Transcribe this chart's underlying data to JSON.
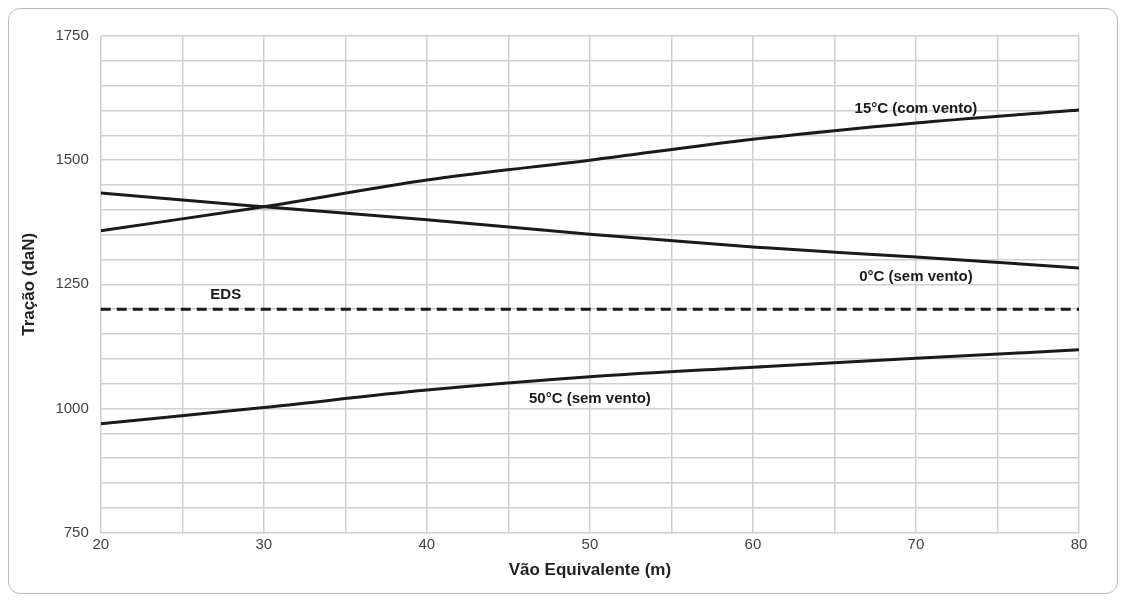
{
  "chart_data": {
    "type": "line",
    "xlabel": "Vão Equivalente (m)",
    "ylabel": "Tração (daN)",
    "x": [
      20,
      30,
      40,
      50,
      60,
      70,
      80
    ],
    "series": [
      {
        "name": "15°C (com vento)",
        "color": "#1a1a1a",
        "values": [
          1358,
          1406,
          1460,
          1500,
          1542,
          1575,
          1601
        ]
      },
      {
        "name": "0°C (sem vento)",
        "color": "#1a1a1a",
        "values": [
          1434,
          1406,
          1380,
          1351,
          1325,
          1305,
          1283
        ]
      },
      {
        "name": "50°C (sem vento)",
        "color": "#1a1a1a",
        "values": [
          969,
          1002,
          1037,
          1064,
          1083,
          1101,
          1118
        ]
      }
    ],
    "ref_lines": [
      {
        "axis": "y",
        "value": 1200,
        "label": "EDS",
        "color": "#1a1a1a",
        "line_style": "dashed"
      }
    ],
    "xlim": [
      20,
      80
    ],
    "ylim": [
      750,
      1750
    ],
    "xticks": [
      20,
      {
        "value": 25,
        "label": null
      },
      30,
      {
        "value": 35,
        "label": null
      },
      40,
      {
        "value": 45,
        "label": null
      },
      50,
      {
        "value": 55,
        "label": null
      },
      60,
      {
        "value": 65,
        "label": null
      },
      70,
      {
        "value": 75,
        "label": null
      },
      80
    ],
    "yticks": [
      750,
      {
        "value": 800,
        "label": null
      },
      {
        "value": 850,
        "label": null
      },
      {
        "value": 900,
        "label": null
      },
      {
        "value": 950,
        "label": null
      },
      1000,
      {
        "value": 1050,
        "label": null
      },
      {
        "value": 1100,
        "label": null
      },
      {
        "value": 1150,
        "label": null
      },
      {
        "value": 1200,
        "label": null
      },
      1250,
      {
        "value": 1300,
        "label": null
      },
      {
        "value": 1350,
        "label": null
      },
      {
        "value": 1400,
        "label": null
      },
      {
        "value": 1450,
        "label": null
      },
      1500,
      {
        "value": 1550,
        "label": null
      },
      {
        "value": 1600,
        "label": null
      },
      {
        "value": 1650,
        "label": null
      },
      {
        "value": 1700,
        "label": null
      },
      1750
    ],
    "grid": true,
    "legend": false,
    "marker": "none",
    "line_style": "solid"
  }
}
